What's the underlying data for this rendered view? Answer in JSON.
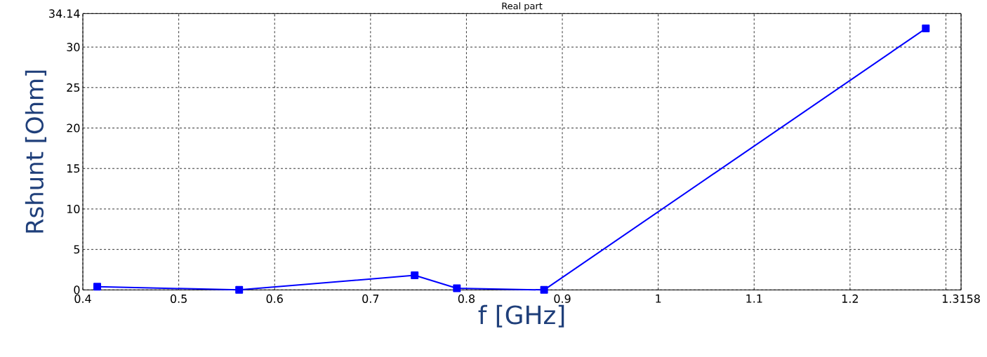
{
  "chart_data": {
    "type": "line",
    "title": "Real part",
    "xlabel": "f [GHz]",
    "ylabel": "Rshunt [Ohm]",
    "x": [
      0.415,
      0.563,
      0.746,
      0.79,
      0.881,
      1.279
    ],
    "series": [
      {
        "color": "#0000ff",
        "values": [
          0.4,
          0,
          1.8,
          0.2,
          0,
          32.3
        ]
      }
    ],
    "xlim": [
      0.4,
      1.3158
    ],
    "ylim": [
      0,
      34.14
    ],
    "xticks": [
      0.4,
      0.5,
      0.6,
      0.7,
      0.8,
      0.9,
      1,
      1.1,
      1.2,
      {
        "value": 1.3,
        "label": null
      },
      1.3158
    ],
    "yticks": [
      0,
      5,
      10,
      15,
      20,
      25,
      30,
      34.14
    ],
    "grid": true,
    "marker": "square",
    "line_style": "solid"
  }
}
